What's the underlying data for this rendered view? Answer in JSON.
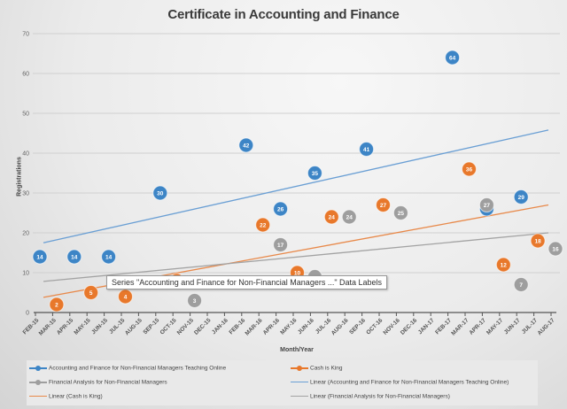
{
  "chart_data": {
    "type": "scatter",
    "title": "Certificate in Accounting and Finance",
    "xlabel": "Month/Year",
    "ylabel": "Registrations",
    "ylim": [
      0,
      70
    ],
    "yticks": [
      0,
      10,
      20,
      30,
      40,
      50,
      60,
      70
    ],
    "grid": true,
    "legend_position": "bottom",
    "categories": [
      "FEB-15",
      "MAR-15",
      "APR-15",
      "MAY-15",
      "JUN-15",
      "JUL-15",
      "AUG-15",
      "SEP-15",
      "OCT-15",
      "NOV-15",
      "DEC-15",
      "JAN-16",
      "FEB-16",
      "MAR-16",
      "APR-16",
      "MAY-16",
      "JUN-16",
      "JUL-16",
      "AUG-16",
      "SEP-16",
      "OCT-16",
      "NOV-16",
      "DEC-16",
      "JAN-17",
      "FEB-17",
      "MAR-17",
      "APR-17",
      "MAY-17",
      "JUN-17",
      "JUL-17",
      "AUG-17"
    ],
    "series": [
      {
        "name": "Accounting and Finance for Non-Financial Managers Teaching Online",
        "color": "#3d85c6",
        "points": [
          {
            "x": "FEB-15",
            "y": 14
          },
          {
            "x": "APR-15",
            "y": 14
          },
          {
            "x": "JUN-15",
            "y": 14
          },
          {
            "x": "SEP-15",
            "y": 30
          },
          {
            "x": "FEB-16",
            "y": 42
          },
          {
            "x": "APR-16",
            "y": 26
          },
          {
            "x": "JUN-16",
            "y": 35
          },
          {
            "x": "SEP-16",
            "y": 41
          },
          {
            "x": "FEB-17",
            "y": 64
          },
          {
            "x": "APR-17",
            "y": 26
          },
          {
            "x": "JUN-17",
            "y": 29
          }
        ]
      },
      {
        "name": "Cash is King",
        "color": "#e8782b",
        "points": [
          {
            "x": "MAR-15",
            "y": 2
          },
          {
            "x": "MAY-15",
            "y": 5
          },
          {
            "x": "JUL-15",
            "y": 4
          },
          {
            "x": "OCT-15",
            "y": 8,
            "hidden_label": true
          },
          {
            "x": "MAR-16",
            "y": 22
          },
          {
            "x": "MAY-16",
            "y": 10
          },
          {
            "x": "JUL-16",
            "y": 24
          },
          {
            "x": "OCT-16",
            "y": 27
          },
          {
            "x": "MAR-17",
            "y": 36
          },
          {
            "x": "MAY-17",
            "y": 12
          },
          {
            "x": "JUL-17",
            "y": 18
          }
        ]
      },
      {
        "name": "Financial Analysis for Non-Financial Managers",
        "color": "#9e9e9e",
        "points": [
          {
            "x": "NOV-15",
            "y": 3
          },
          {
            "x": "APR-16",
            "y": 17
          },
          {
            "x": "JUN-16",
            "y": 9,
            "hidden_label": true
          },
          {
            "x": "AUG-16",
            "y": 24
          },
          {
            "x": "NOV-16",
            "y": 25
          },
          {
            "x": "APR-17",
            "y": 27
          },
          {
            "x": "JUN-17",
            "y": 7
          },
          {
            "x": "AUG-17",
            "y": 16
          }
        ]
      }
    ],
    "trendlines": [
      {
        "name": "Linear (Accounting and Finance for Non-Financial Managers Teaching Online)",
        "color": "#6a9fd4",
        "start": 17.5,
        "end": 45.8
      },
      {
        "name": "Linear (Cash is King)",
        "color": "#e8894a",
        "start": 3.8,
        "end": 27
      },
      {
        "name": "Linear (Financial Analysis for Non-Financial Managers)",
        "color": "#a3a3a3",
        "start": 7.8,
        "end": 20
      }
    ]
  },
  "tooltip": {
    "text": "Series \"Accounting and Finance for Non-Financial Managers ...\" Data Labels"
  },
  "legend": {
    "items": [
      {
        "label": "Accounting and Finance for Non-Financial Managers Teaching Online",
        "color": "#3d85c6",
        "marker": true
      },
      {
        "label": "Cash is King",
        "color": "#e8782b",
        "marker": true
      },
      {
        "label": "Financial Analysis for Non-Financial Managers",
        "color": "#9e9e9e",
        "marker": true
      },
      {
        "label": "Linear (Accounting and Finance for Non-Financial Managers Teaching Online)",
        "color": "#6a9fd4",
        "marker": false
      },
      {
        "label": "Linear (Cash is King)",
        "color": "#e8894a",
        "marker": false
      },
      {
        "label": "Linear (Financial Analysis for Non-Financial Managers)",
        "color": "#a3a3a3",
        "marker": false
      }
    ]
  }
}
